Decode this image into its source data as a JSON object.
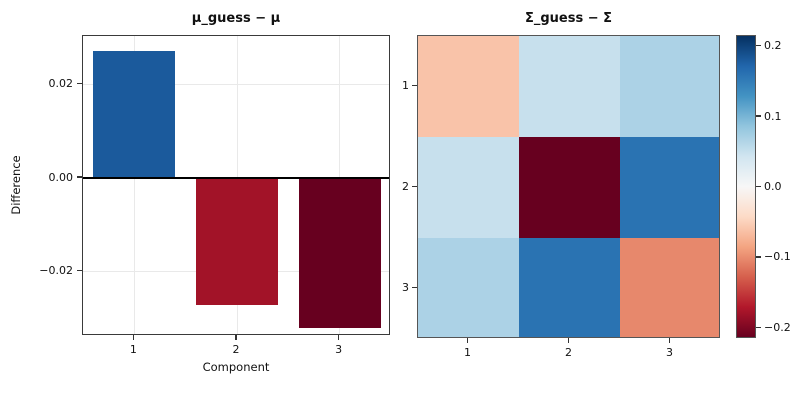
{
  "chart_data": [
    {
      "type": "bar",
      "title": "μ_guess − μ",
      "xlabel": "Component",
      "ylabel": "Difference",
      "categories": [
        "1",
        "2",
        "3"
      ],
      "values": [
        0.027,
        -0.027,
        -0.032
      ],
      "ylim": [
        -0.0337,
        0.0303
      ],
      "yticks": [
        0.02,
        0.0,
        -0.02
      ],
      "ytick_labels": [
        "0.02",
        "0.00",
        "−0.02"
      ],
      "grid": true,
      "zero_line": true,
      "colormap": "RdBu",
      "color_vmax": 0.032,
      "legend": "none"
    },
    {
      "type": "heatmap",
      "title": "Σ_guess − Σ",
      "rows": [
        "1",
        "2",
        "3"
      ],
      "cols": [
        "1",
        "2",
        "3"
      ],
      "matrix": [
        [
          -0.062,
          0.05,
          0.068
        ],
        [
          0.05,
          -0.215,
          0.16
        ],
        [
          0.068,
          0.16,
          -0.104
        ]
      ],
      "vmin": -0.215,
      "vmax": 0.215,
      "colormap": "RdBu",
      "colorbar_ticks": [
        0.2,
        0.1,
        0.0,
        -0.1,
        -0.2
      ],
      "colorbar_tick_labels": [
        "0.2",
        "0.1",
        "0.0",
        "−0.1",
        "−0.2"
      ],
      "legend": "colorbar-right"
    }
  ],
  "colors": {
    "rdbu_stops": [
      "#67001f",
      "#b2182b",
      "#d6604d",
      "#f4a582",
      "#fddbc7",
      "#f7f7f7",
      "#d1e5f0",
      "#92c5de",
      "#4393c3",
      "#2166ac",
      "#053061"
    ],
    "grid": "#e9e9e9",
    "frame": "#3a3a3a",
    "zero_line": "#000000",
    "background": "#ffffff"
  }
}
